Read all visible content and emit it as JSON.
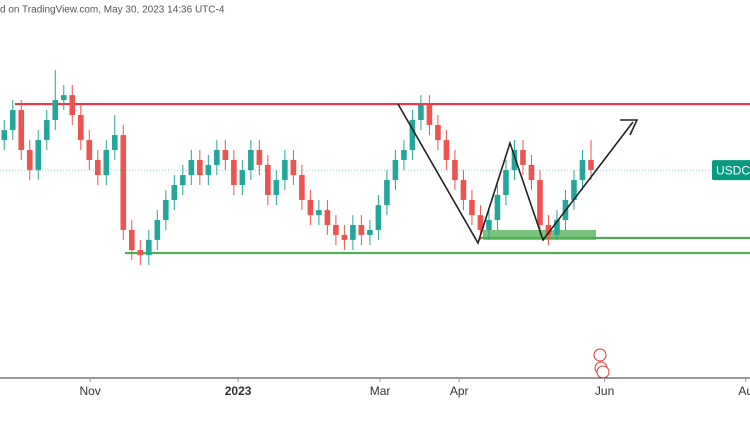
{
  "chart_data": {
    "type": "candlestick",
    "header": "d on TradingView.com, May 30, 2023 14:36 UTC-4",
    "symbol_label": "USDCA",
    "up_color": "#26a69a",
    "down_color": "#ef5350",
    "ylim": [
      1.2757,
      1.4279
    ],
    "xlim": [
      -0.5,
      87.7
    ],
    "xticks": [
      {
        "value": 10.1,
        "label": "Nov"
      },
      {
        "value": 27.5,
        "label": "2023"
      },
      {
        "value": 44.2,
        "label": "Mar"
      },
      {
        "value": 53.5,
        "label": "Apr"
      },
      {
        "value": 70.6,
        "label": "Jun"
      },
      {
        "value": 87.2,
        "label": "Au"
      }
    ],
    "levels": [
      {
        "value": 1.386,
        "color": "#f23645"
      },
      {
        "value": 1.326,
        "color": "#4caf50"
      },
      {
        "value": 1.3321,
        "color": "#4caf50"
      }
    ],
    "zone": [
      1.3313,
      1.3353
    ],
    "ohlc": [
      [
        1.3715,
        1.3796,
        1.3675,
        1.3755
      ],
      [
        1.3755,
        1.3876,
        1.3715,
        1.3836
      ],
      [
        1.3836,
        1.3876,
        1.3635,
        1.3675
      ],
      [
        1.3675,
        1.3715,
        1.3554,
        1.3594
      ],
      [
        1.3594,
        1.3755,
        1.3554,
        1.3715
      ],
      [
        1.3715,
        1.3836,
        1.3675,
        1.3796
      ],
      [
        1.3796,
        1.3997,
        1.3755,
        1.3876
      ],
      [
        1.3876,
        1.3937,
        1.3836,
        1.3896
      ],
      [
        1.3896,
        1.3937,
        1.3776,
        1.3816
      ],
      [
        1.3816,
        1.3856,
        1.3675,
        1.3715
      ],
      [
        1.3715,
        1.3755,
        1.3594,
        1.3635
      ],
      [
        1.3635,
        1.3675,
        1.3534,
        1.3574
      ],
      [
        1.3574,
        1.3715,
        1.3534,
        1.3675
      ],
      [
        1.3675,
        1.3816,
        1.3635,
        1.3735
      ],
      [
        1.3735,
        1.3776,
        1.3313,
        1.3353
      ],
      [
        1.3353,
        1.3393,
        1.3232,
        1.3272
      ],
      [
        1.3272,
        1.3313,
        1.3212,
        1.3252
      ],
      [
        1.3252,
        1.3353,
        1.3212,
        1.3313
      ],
      [
        1.3313,
        1.3433,
        1.3272,
        1.3393
      ],
      [
        1.3393,
        1.3514,
        1.3353,
        1.3474
      ],
      [
        1.3474,
        1.3574,
        1.3433,
        1.3534
      ],
      [
        1.3534,
        1.3615,
        1.3494,
        1.3574
      ],
      [
        1.3574,
        1.3675,
        1.3534,
        1.3635
      ],
      [
        1.3635,
        1.3675,
        1.3534,
        1.3574
      ],
      [
        1.3574,
        1.3655,
        1.3534,
        1.3615
      ],
      [
        1.3615,
        1.3715,
        1.3574,
        1.3675
      ],
      [
        1.3675,
        1.3715,
        1.3594,
        1.3635
      ],
      [
        1.3635,
        1.3675,
        1.3494,
        1.3534
      ],
      [
        1.3534,
        1.3635,
        1.3494,
        1.3594
      ],
      [
        1.3594,
        1.3715,
        1.3554,
        1.3675
      ],
      [
        1.3675,
        1.3715,
        1.3574,
        1.3615
      ],
      [
        1.3615,
        1.3655,
        1.3453,
        1.3494
      ],
      [
        1.3494,
        1.3594,
        1.3453,
        1.3554
      ],
      [
        1.3554,
        1.3675,
        1.3514,
        1.3635
      ],
      [
        1.3635,
        1.3675,
        1.3534,
        1.3574
      ],
      [
        1.3574,
        1.3615,
        1.3433,
        1.3474
      ],
      [
        1.3474,
        1.3514,
        1.3373,
        1.3413
      ],
      [
        1.3413,
        1.3474,
        1.3373,
        1.3433
      ],
      [
        1.3433,
        1.3474,
        1.3333,
        1.3373
      ],
      [
        1.3373,
        1.3413,
        1.3292,
        1.3333
      ],
      [
        1.3333,
        1.3373,
        1.3272,
        1.3313
      ],
      [
        1.3313,
        1.3413,
        1.3272,
        1.3373
      ],
      [
        1.3373,
        1.3413,
        1.3292,
        1.3333
      ],
      [
        1.3333,
        1.3393,
        1.3292,
        1.3353
      ],
      [
        1.3353,
        1.3494,
        1.3313,
        1.3453
      ],
      [
        1.3453,
        1.3594,
        1.3413,
        1.3554
      ],
      [
        1.3554,
        1.3675,
        1.3514,
        1.3635
      ],
      [
        1.3635,
        1.3715,
        1.3594,
        1.3675
      ],
      [
        1.3675,
        1.3836,
        1.3635,
        1.3796
      ],
      [
        1.3796,
        1.3896,
        1.3755,
        1.3856
      ],
      [
        1.3856,
        1.3896,
        1.3735,
        1.3776
      ],
      [
        1.3776,
        1.3816,
        1.3675,
        1.3715
      ],
      [
        1.3715,
        1.3755,
        1.3594,
        1.3635
      ],
      [
        1.3635,
        1.3675,
        1.3514,
        1.3554
      ],
      [
        1.3554,
        1.3594,
        1.3433,
        1.3474
      ],
      [
        1.3474,
        1.3514,
        1.3373,
        1.3413
      ],
      [
        1.3413,
        1.3453,
        1.3313,
        1.3353
      ],
      [
        1.3353,
        1.3433,
        1.3313,
        1.3393
      ],
      [
        1.3393,
        1.3534,
        1.3353,
        1.3494
      ],
      [
        1.3494,
        1.3635,
        1.3453,
        1.3594
      ],
      [
        1.3594,
        1.3715,
        1.3554,
        1.3675
      ],
      [
        1.3675,
        1.3715,
        1.3574,
        1.3615
      ],
      [
        1.3615,
        1.3655,
        1.3514,
        1.3554
      ],
      [
        1.3554,
        1.3594,
        1.3333,
        1.3373
      ],
      [
        1.3373,
        1.3413,
        1.3292,
        1.3333
      ],
      [
        1.3333,
        1.3433,
        1.3313,
        1.3393
      ],
      [
        1.3393,
        1.3514,
        1.3353,
        1.3474
      ],
      [
        1.3474,
        1.3594,
        1.3433,
        1.3554
      ],
      [
        1.3554,
        1.3675,
        1.3514,
        1.3635
      ],
      [
        1.3635,
        1.3715,
        1.3554,
        1.3594
      ]
    ]
  }
}
